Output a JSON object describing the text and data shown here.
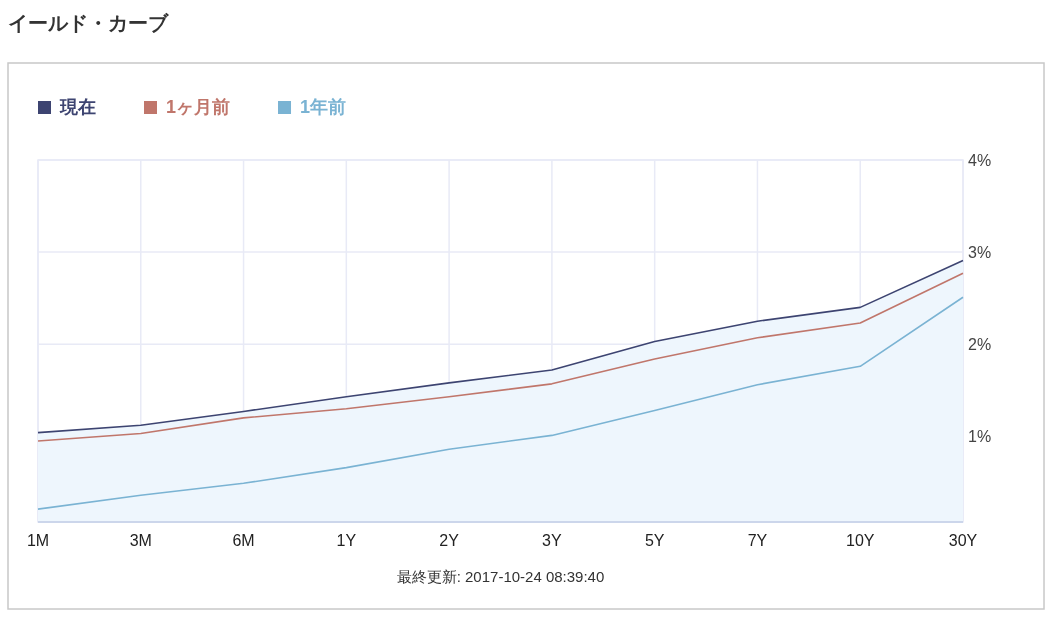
{
  "chart_data": {
    "type": "line",
    "title": "イールド・カーブ",
    "categories": [
      "1M",
      "3M",
      "6M",
      "1Y",
      "2Y",
      "3Y",
      "5Y",
      "7Y",
      "10Y",
      "30Y"
    ],
    "series": [
      {
        "name": "現在",
        "type": "area",
        "color": "#3d4471",
        "values": [
          1.04,
          1.12,
          1.27,
          1.43,
          1.58,
          1.72,
          2.03,
          2.25,
          2.4,
          2.91
        ]
      },
      {
        "name": "1ヶ月前",
        "color": "#c0766b",
        "values": [
          0.95,
          1.03,
          1.2,
          1.3,
          1.43,
          1.57,
          1.84,
          2.07,
          2.23,
          2.77
        ]
      },
      {
        "name": "1年前",
        "color": "#7ab3d3",
        "values": [
          0.21,
          0.36,
          0.49,
          0.66,
          0.86,
          1.01,
          1.28,
          1.56,
          1.76,
          2.51
        ]
      }
    ],
    "ylim": [
      0.07,
      4
    ],
    "yticks": [
      {
        "value": 1,
        "label": "1%"
      },
      {
        "value": 2,
        "label": "2%"
      },
      {
        "value": 3,
        "label": "3%"
      },
      {
        "value": 4,
        "label": "4%"
      }
    ],
    "grid": true,
    "legend": "top left",
    "marker": "none",
    "annotations": [
      "最終更新: 2017-10-24 08:39:40"
    ]
  }
}
